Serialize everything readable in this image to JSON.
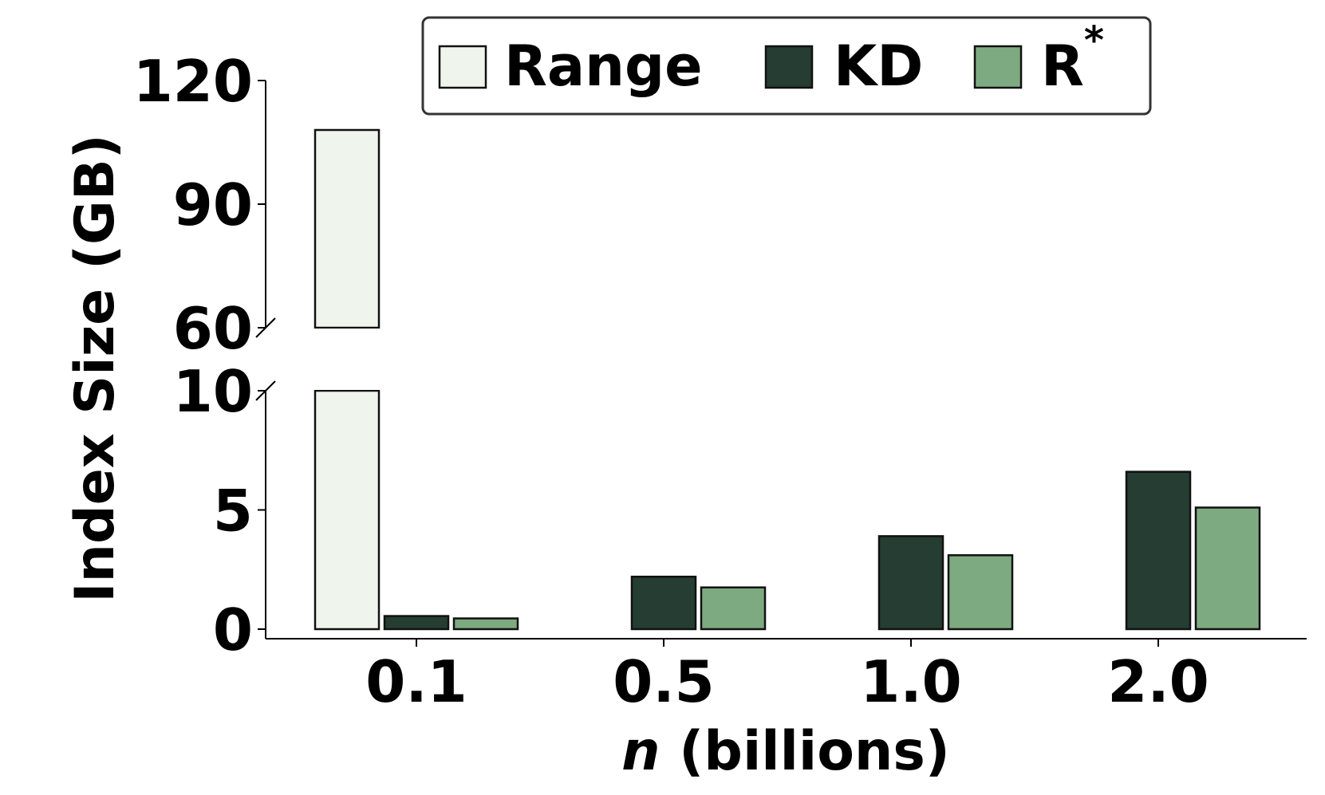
{
  "chart_data": {
    "type": "bar",
    "broken_axis": true,
    "xlabel_var": "n",
    "xlabel_rest": " (billions)",
    "ylabel": "Index Size (GB)",
    "categories": [
      "0.1",
      "0.5",
      "1.0",
      "2.0"
    ],
    "series": [
      {
        "name": "Range",
        "values": [
          108,
          null,
          null,
          null
        ],
        "color": "#eff5ec"
      },
      {
        "name": "KD",
        "values": [
          0.55,
          2.2,
          3.9,
          6.6
        ],
        "color": "#253d33"
      },
      {
        "name": "R",
        "values": [
          0.45,
          1.75,
          3.1,
          5.1
        ],
        "color": "#7eaa81"
      }
    ],
    "legend_superscript": "*",
    "lower_axis": {
      "ylim": [
        0,
        10
      ],
      "ticks": [
        "0",
        "5",
        "10"
      ]
    },
    "upper_axis": {
      "ylim": [
        60,
        120
      ],
      "ticks": [
        "60",
        "90",
        "120"
      ]
    },
    "legend_position": "top-right"
  }
}
